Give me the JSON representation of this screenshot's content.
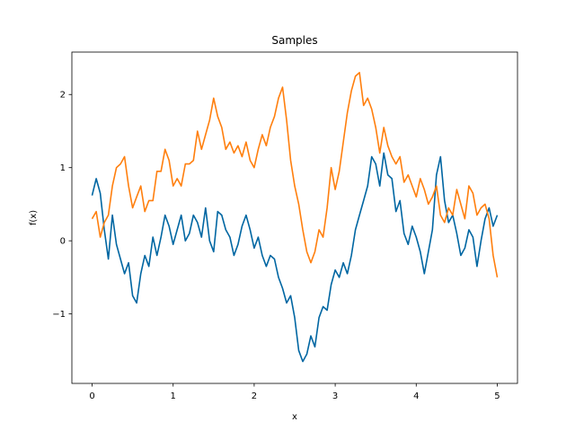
{
  "chart_data": {
    "type": "line",
    "title": "Samples",
    "xlabel": "x",
    "ylabel": "f(x)",
    "xlim": [
      -0.25,
      5.25
    ],
    "ylim": [
      -1.95,
      2.58
    ],
    "xticks": [
      {
        "value": 0,
        "label": "0"
      },
      {
        "value": 1,
        "label": "1"
      },
      {
        "value": 2,
        "label": "2"
      },
      {
        "value": 3,
        "label": "3"
      },
      {
        "value": 4,
        "label": "4"
      },
      {
        "value": 5,
        "label": "5"
      }
    ],
    "yticks": [
      {
        "value": -1,
        "label": "−1"
      },
      {
        "value": 0,
        "label": "0"
      },
      {
        "value": 1,
        "label": "1"
      },
      {
        "value": 2,
        "label": "2"
      }
    ],
    "grid": false,
    "series": [
      {
        "color": "#0066a2",
        "x": [
          0,
          0.05,
          0.1,
          0.15,
          0.2,
          0.25,
          0.3,
          0.35,
          0.4,
          0.45,
          0.5,
          0.55,
          0.6,
          0.65,
          0.7,
          0.75,
          0.8,
          0.85,
          0.9,
          0.95,
          1.0,
          1.05,
          1.1,
          1.15,
          1.2,
          1.25,
          1.3,
          1.35,
          1.4,
          1.45,
          1.5,
          1.55,
          1.6,
          1.65,
          1.7,
          1.75,
          1.8,
          1.85,
          1.9,
          1.95,
          2.0,
          2.05,
          2.1,
          2.15,
          2.2,
          2.25,
          2.3,
          2.35,
          2.4,
          2.45,
          2.5,
          2.55,
          2.6,
          2.65,
          2.7,
          2.75,
          2.8,
          2.85,
          2.9,
          2.95,
          3.0,
          3.05,
          3.1,
          3.15,
          3.2,
          3.25,
          3.3,
          3.35,
          3.4,
          3.45,
          3.5,
          3.55,
          3.6,
          3.65,
          3.7,
          3.75,
          3.8,
          3.85,
          3.9,
          3.95,
          4.0,
          4.05,
          4.1,
          4.15,
          4.2,
          4.25,
          4.3,
          4.35,
          4.4,
          4.45,
          4.5,
          4.55,
          4.6,
          4.65,
          4.7,
          4.75,
          4.8,
          4.85,
          4.9,
          4.95,
          5.0
        ],
        "y": [
          0.62,
          0.85,
          0.65,
          0.15,
          -0.25,
          0.35,
          -0.05,
          -0.25,
          -0.45,
          -0.3,
          -0.75,
          -0.85,
          -0.45,
          -0.2,
          -0.35,
          0.05,
          -0.2,
          0.05,
          0.35,
          0.2,
          -0.05,
          0.15,
          0.35,
          0.0,
          0.1,
          0.35,
          0.25,
          0.05,
          0.45,
          0.0,
          -0.15,
          0.4,
          0.35,
          0.15,
          0.05,
          -0.2,
          -0.05,
          0.2,
          0.35,
          0.15,
          -0.1,
          0.05,
          -0.2,
          -0.35,
          -0.2,
          -0.25,
          -0.5,
          -0.65,
          -0.85,
          -0.75,
          -1.05,
          -1.5,
          -1.65,
          -1.55,
          -1.3,
          -1.45,
          -1.05,
          -0.9,
          -0.95,
          -0.6,
          -0.4,
          -0.5,
          -0.3,
          -0.45,
          -0.2,
          0.15,
          0.35,
          0.55,
          0.75,
          1.15,
          1.05,
          0.75,
          1.2,
          0.9,
          0.85,
          0.4,
          0.55,
          0.1,
          -0.05,
          0.2,
          0.05,
          -0.15,
          -0.45,
          -0.15,
          0.15,
          0.9,
          1.15,
          0.55,
          0.25,
          0.35,
          0.1,
          -0.2,
          -0.1,
          0.15,
          0.05,
          -0.35,
          0.0,
          0.3,
          0.45,
          0.2,
          0.35
        ]
      },
      {
        "color": "#ff7f0e",
        "x": [
          0,
          0.05,
          0.1,
          0.15,
          0.2,
          0.25,
          0.3,
          0.35,
          0.4,
          0.45,
          0.5,
          0.55,
          0.6,
          0.65,
          0.7,
          0.75,
          0.8,
          0.85,
          0.9,
          0.95,
          1.0,
          1.05,
          1.1,
          1.15,
          1.2,
          1.25,
          1.3,
          1.35,
          1.4,
          1.45,
          1.5,
          1.55,
          1.6,
          1.65,
          1.7,
          1.75,
          1.8,
          1.85,
          1.9,
          1.95,
          2.0,
          2.05,
          2.1,
          2.15,
          2.2,
          2.25,
          2.3,
          2.35,
          2.4,
          2.45,
          2.5,
          2.55,
          2.6,
          2.65,
          2.7,
          2.75,
          2.8,
          2.85,
          2.9,
          2.95,
          3.0,
          3.05,
          3.1,
          3.15,
          3.2,
          3.25,
          3.3,
          3.35,
          3.4,
          3.45,
          3.5,
          3.55,
          3.6,
          3.65,
          3.7,
          3.75,
          3.8,
          3.85,
          3.9,
          3.95,
          4.0,
          4.05,
          4.1,
          4.15,
          4.2,
          4.25,
          4.3,
          4.35,
          4.4,
          4.45,
          4.5,
          4.55,
          4.6,
          4.65,
          4.7,
          4.75,
          4.8,
          4.85,
          4.9,
          4.95,
          5.0
        ],
        "y": [
          0.3,
          0.4,
          0.05,
          0.25,
          0.35,
          0.75,
          1.0,
          1.05,
          1.15,
          0.75,
          0.45,
          0.6,
          0.75,
          0.4,
          0.55,
          0.55,
          0.95,
          0.95,
          1.25,
          1.1,
          0.75,
          0.85,
          0.75,
          1.05,
          1.05,
          1.1,
          1.5,
          1.25,
          1.45,
          1.65,
          1.95,
          1.7,
          1.55,
          1.25,
          1.35,
          1.2,
          1.3,
          1.15,
          1.35,
          1.1,
          1.0,
          1.25,
          1.45,
          1.3,
          1.55,
          1.7,
          1.95,
          2.1,
          1.65,
          1.1,
          0.75,
          0.5,
          0.15,
          -0.15,
          -0.3,
          -0.15,
          0.15,
          0.05,
          0.45,
          1.0,
          0.7,
          0.95,
          1.35,
          1.75,
          2.05,
          2.25,
          2.3,
          1.85,
          1.95,
          1.8,
          1.55,
          1.2,
          1.55,
          1.3,
          1.15,
          1.05,
          1.15,
          0.8,
          0.9,
          0.75,
          0.6,
          0.85,
          0.7,
          0.5,
          0.6,
          0.75,
          0.35,
          0.25,
          0.45,
          0.35,
          0.7,
          0.5,
          0.3,
          0.75,
          0.65,
          0.35,
          0.45,
          0.5,
          0.3,
          -0.2,
          -0.5
        ]
      }
    ]
  }
}
